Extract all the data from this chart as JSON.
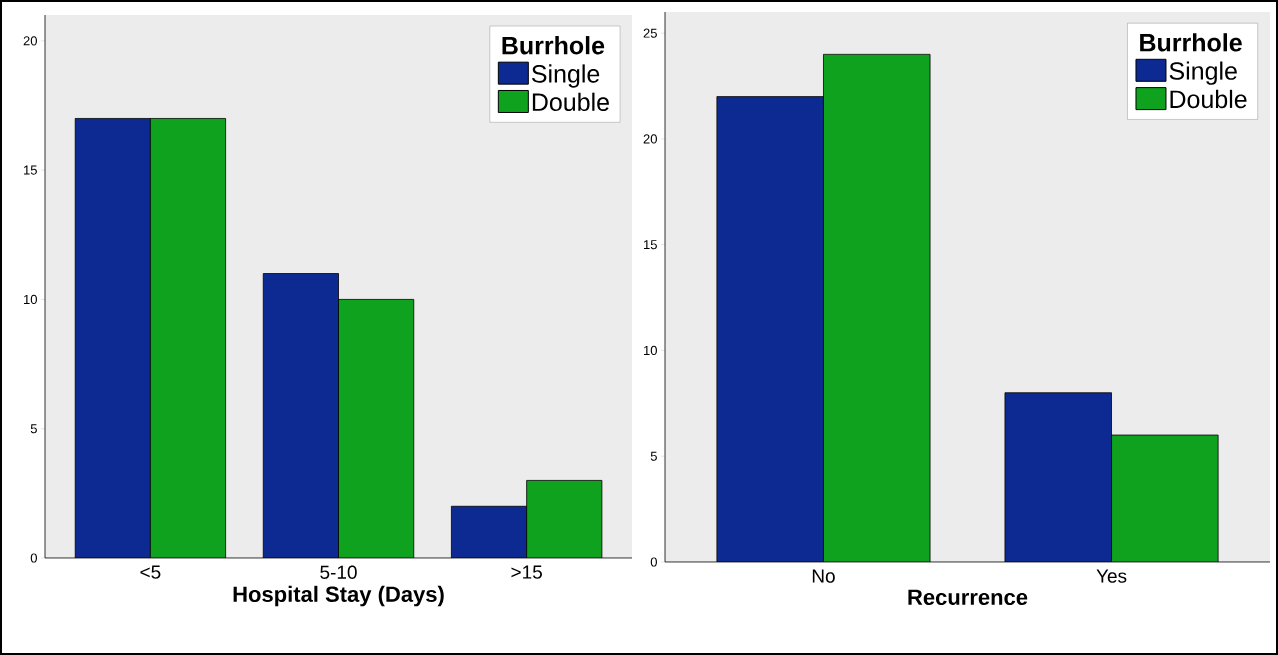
{
  "chart_data": [
    {
      "type": "bar",
      "xlabel": "Hospital Stay (Days)",
      "legend_title": "Burrhole",
      "categories": [
        "<5",
        "5-10",
        ">15"
      ],
      "series": [
        {
          "name": "Single",
          "color": "#0c2a92",
          "values": [
            17,
            11,
            2
          ]
        },
        {
          "name": "Double",
          "color": "#0ea21e",
          "values": [
            17,
            10,
            3
          ]
        }
      ],
      "ylim": [
        0,
        21
      ],
      "yticks": [
        0,
        5,
        10,
        15,
        20
      ],
      "grid": false,
      "legend": "top right"
    },
    {
      "type": "bar",
      "xlabel": "Recurrence",
      "legend_title": "Burrhole",
      "categories": [
        "No",
        "Yes"
      ],
      "series": [
        {
          "name": "Single",
          "color": "#0c2a92",
          "values": [
            22,
            8
          ]
        },
        {
          "name": "Double",
          "color": "#0ea21e",
          "values": [
            24,
            6
          ]
        }
      ],
      "ylim": [
        0,
        26
      ],
      "yticks": [
        0,
        5,
        10,
        15,
        20,
        25
      ],
      "grid": false,
      "legend": "top right"
    }
  ]
}
